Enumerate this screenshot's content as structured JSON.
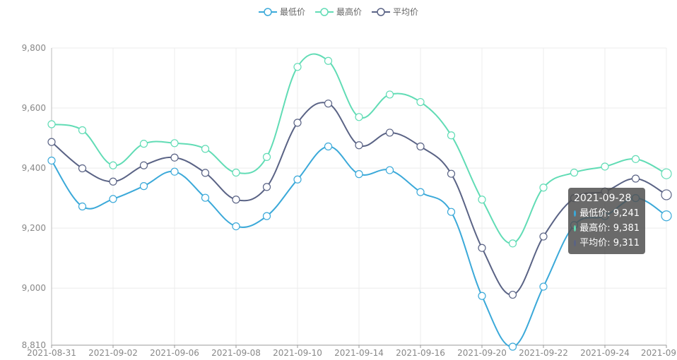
{
  "chart_data": {
    "type": "line",
    "title": "",
    "xlabel": "",
    "ylabel": "",
    "ylim": [
      8810,
      9800
    ],
    "yticks": [
      "9,800",
      "9,600",
      "9,400",
      "9,200",
      "9,000",
      "8,810"
    ],
    "ytick_values": [
      9800,
      9600,
      9400,
      9200,
      9000,
      8810
    ],
    "xtick_labels": [
      "2021-08-31",
      "2021-09-02",
      "2021-09-06",
      "2021-09-08",
      "2021-09-10",
      "2021-09-14",
      "2021-09-16",
      "2021-09-20",
      "2021-09-22",
      "2021-09-24",
      "2021-09"
    ],
    "x": [
      "2021-08-31",
      "2021-09-01",
      "2021-09-02",
      "2021-09-03",
      "2021-09-06",
      "2021-09-07",
      "2021-09-08",
      "2021-09-09",
      "2021-09-10",
      "2021-09-13",
      "2021-09-14",
      "2021-09-15",
      "2021-09-16",
      "2021-09-17",
      "2021-09-20",
      "2021-09-21",
      "2021-09-22",
      "2021-09-23",
      "2021-09-24",
      "2021-09-27",
      "2021-09-28"
    ],
    "series": [
      {
        "name": "最低价",
        "color": "#3ba9d9",
        "values": [
          9425,
          9272,
          9297,
          9340,
          9388,
          9301,
          9206,
          9240,
          9362,
          9472,
          9380,
          9393,
          9320,
          9254,
          8974,
          8805,
          9005,
          9210,
          9240,
          9300,
          9241
        ]
      },
      {
        "name": "最高价",
        "color": "#61dcb5",
        "values": [
          9546,
          9526,
          9409,
          9481,
          9483,
          9464,
          9385,
          9437,
          9737,
          9757,
          9570,
          9645,
          9620,
          9509,
          9295,
          9149,
          9335,
          9385,
          9405,
          9430,
          9381
        ]
      },
      {
        "name": "平均价",
        "color": "#5a6385",
        "values": [
          9487,
          9399,
          9355,
          9409,
          9435,
          9384,
          9295,
          9337,
          9551,
          9615,
          9476,
          9518,
          9472,
          9381,
          9134,
          8978,
          9172,
          9300,
          9322,
          9365,
          9311
        ]
      }
    ],
    "legend_position": "top-center",
    "grid": true
  },
  "tooltip": {
    "title": "2021-09-28",
    "rows": [
      {
        "label": "最低价: 9,241",
        "color": "#3ba9d9"
      },
      {
        "label": "最高价: 9,381",
        "color": "#61dcb5"
      },
      {
        "label": "平均价: 9,311",
        "color": "#5a6385"
      }
    ]
  }
}
